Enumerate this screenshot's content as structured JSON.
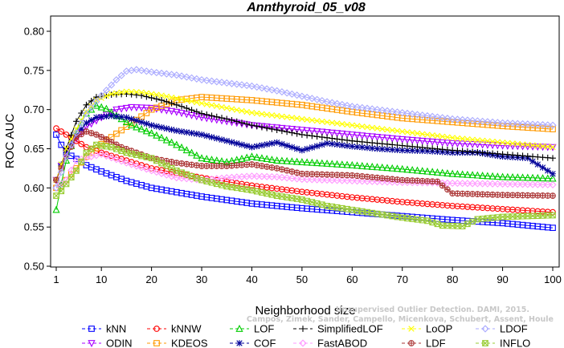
{
  "chart_data": {
    "type": "line",
    "title": "Annthyroid_05_v08",
    "xlabel": "Neighborhood size",
    "ylabel": "ROC AUC",
    "xlim": [
      1,
      100
    ],
    "ylim": [
      0.5,
      0.8
    ],
    "xticks": [
      1,
      10,
      20,
      30,
      40,
      50,
      60,
      70,
      80,
      90,
      100
    ],
    "yticks": [
      0.5,
      0.55,
      0.6,
      0.65,
      0.7,
      0.75,
      0.8
    ],
    "ytick_labels": [
      "0.50",
      "0.55",
      "0.60",
      "0.65",
      "0.70",
      "0.75",
      "0.80"
    ],
    "grid": false,
    "legend_position": "bottom",
    "series": [
      {
        "name": "kNN",
        "color": "#0000ff",
        "marker": "square",
        "anchors": [
          [
            1,
            0.668
          ],
          [
            2,
            0.655
          ],
          [
            3,
            0.645
          ],
          [
            5,
            0.637
          ],
          [
            7,
            0.629
          ],
          [
            10,
            0.621
          ],
          [
            15,
            0.609
          ],
          [
            20,
            0.6
          ],
          [
            30,
            0.589
          ],
          [
            40,
            0.58
          ],
          [
            50,
            0.574
          ],
          [
            60,
            0.569
          ],
          [
            70,
            0.564
          ],
          [
            80,
            0.559
          ],
          [
            90,
            0.555
          ],
          [
            100,
            0.549
          ]
        ]
      },
      {
        "name": "ODIN",
        "color": "#aa00ff",
        "marker": "triangle-down",
        "anchors": [
          [
            1,
            0.61
          ],
          [
            2,
            0.628
          ],
          [
            3,
            0.645
          ],
          [
            5,
            0.663
          ],
          [
            7,
            0.678
          ],
          [
            10,
            0.69
          ],
          [
            13,
            0.7
          ],
          [
            16,
            0.703
          ],
          [
            20,
            0.702
          ],
          [
            25,
            0.697
          ],
          [
            30,
            0.69
          ],
          [
            40,
            0.68
          ],
          [
            50,
            0.674
          ],
          [
            60,
            0.668
          ],
          [
            70,
            0.662
          ],
          [
            80,
            0.657
          ],
          [
            90,
            0.654
          ],
          [
            100,
            0.652
          ]
        ]
      },
      {
        "name": "kNNW",
        "color": "#ff0000",
        "marker": "circle",
        "anchors": [
          [
            1,
            0.676
          ],
          [
            2,
            0.672
          ],
          [
            3,
            0.668
          ],
          [
            5,
            0.66
          ],
          [
            7,
            0.652
          ],
          [
            10,
            0.645
          ],
          [
            15,
            0.635
          ],
          [
            20,
            0.625
          ],
          [
            30,
            0.613
          ],
          [
            40,
            0.603
          ],
          [
            50,
            0.595
          ],
          [
            60,
            0.588
          ],
          [
            70,
            0.582
          ],
          [
            80,
            0.577
          ],
          [
            90,
            0.573
          ],
          [
            100,
            0.569
          ]
        ]
      },
      {
        "name": "KDEOS",
        "color": "#ff9900",
        "marker": "square",
        "anchors": [
          [
            1,
            0.6
          ],
          [
            2,
            0.602
          ],
          [
            3,
            0.61
          ],
          [
            5,
            0.625
          ],
          [
            7,
            0.64
          ],
          [
            10,
            0.656
          ],
          [
            15,
            0.678
          ],
          [
            20,
            0.7
          ],
          [
            25,
            0.712
          ],
          [
            30,
            0.716
          ],
          [
            40,
            0.712
          ],
          [
            50,
            0.706
          ],
          [
            60,
            0.697
          ],
          [
            70,
            0.689
          ],
          [
            80,
            0.684
          ],
          [
            90,
            0.679
          ],
          [
            100,
            0.675
          ]
        ]
      },
      {
        "name": "LOF",
        "color": "#00cc00",
        "marker": "triangle-up",
        "anchors": [
          [
            1,
            0.572
          ],
          [
            2,
            0.605
          ],
          [
            3,
            0.635
          ],
          [
            5,
            0.672
          ],
          [
            7,
            0.695
          ],
          [
            9,
            0.705
          ],
          [
            11,
            0.701
          ],
          [
            13,
            0.692
          ],
          [
            16,
            0.68
          ],
          [
            20,
            0.67
          ],
          [
            25,
            0.655
          ],
          [
            30,
            0.638
          ],
          [
            35,
            0.633
          ],
          [
            40,
            0.64
          ],
          [
            45,
            0.635
          ],
          [
            50,
            0.633
          ],
          [
            60,
            0.629
          ],
          [
            70,
            0.624
          ],
          [
            80,
            0.618
          ],
          [
            90,
            0.614
          ],
          [
            100,
            0.612
          ]
        ]
      },
      {
        "name": "COF",
        "color": "#000099",
        "marker": "asterisk",
        "anchors": [
          [
            1,
            0.61
          ],
          [
            2,
            0.63
          ],
          [
            3,
            0.648
          ],
          [
            5,
            0.667
          ],
          [
            7,
            0.683
          ],
          [
            9,
            0.69
          ],
          [
            12,
            0.692
          ],
          [
            15,
            0.69
          ],
          [
            20,
            0.68
          ],
          [
            25,
            0.673
          ],
          [
            30,
            0.668
          ],
          [
            35,
            0.66
          ],
          [
            40,
            0.652
          ],
          [
            45,
            0.658
          ],
          [
            50,
            0.648
          ],
          [
            55,
            0.657
          ],
          [
            60,
            0.653
          ],
          [
            65,
            0.65
          ],
          [
            70,
            0.648
          ],
          [
            75,
            0.647
          ],
          [
            80,
            0.645
          ],
          [
            85,
            0.645
          ],
          [
            90,
            0.64
          ],
          [
            95,
            0.638
          ],
          [
            100,
            0.618
          ]
        ]
      },
      {
        "name": "SimplifiedLOF",
        "color": "#000000",
        "marker": "plus",
        "anchors": [
          [
            1,
            0.61
          ],
          [
            2,
            0.628
          ],
          [
            3,
            0.65
          ],
          [
            5,
            0.685
          ],
          [
            7,
            0.706
          ],
          [
            9,
            0.716
          ],
          [
            12,
            0.719
          ],
          [
            15,
            0.72
          ],
          [
            18,
            0.718
          ],
          [
            22,
            0.712
          ],
          [
            26,
            0.704
          ],
          [
            30,
            0.695
          ],
          [
            35,
            0.688
          ],
          [
            40,
            0.68
          ],
          [
            45,
            0.674
          ],
          [
            50,
            0.668
          ],
          [
            60,
            0.66
          ],
          [
            70,
            0.654
          ],
          [
            80,
            0.648
          ],
          [
            90,
            0.643
          ],
          [
            100,
            0.638
          ]
        ]
      },
      {
        "name": "FastABOD",
        "color": "#ff99ff",
        "marker": "diamond",
        "anchors": [
          [
            1,
            0.6
          ],
          [
            2,
            0.605
          ],
          [
            3,
            0.61
          ],
          [
            5,
            0.635
          ],
          [
            8,
            0.64
          ],
          [
            10,
            0.643
          ],
          [
            15,
            0.632
          ],
          [
            20,
            0.622
          ],
          [
            25,
            0.613
          ],
          [
            30,
            0.61
          ],
          [
            35,
            0.613
          ],
          [
            40,
            0.615
          ],
          [
            45,
            0.614
          ],
          [
            50,
            0.611
          ],
          [
            60,
            0.609
          ],
          [
            70,
            0.607
          ],
          [
            80,
            0.606
          ],
          [
            90,
            0.605
          ],
          [
            100,
            0.604
          ]
        ]
      },
      {
        "name": "LoOP",
        "color": "#ffff00",
        "marker": "x",
        "anchors": [
          [
            1,
            0.61
          ],
          [
            2,
            0.63
          ],
          [
            3,
            0.65
          ],
          [
            5,
            0.675
          ],
          [
            7,
            0.697
          ],
          [
            9,
            0.712
          ],
          [
            12,
            0.72
          ],
          [
            15,
            0.723
          ],
          [
            18,
            0.722
          ],
          [
            22,
            0.718
          ],
          [
            26,
            0.713
          ],
          [
            30,
            0.708
          ],
          [
            35,
            0.702
          ],
          [
            40,
            0.696
          ],
          [
            50,
            0.688
          ],
          [
            60,
            0.68
          ],
          [
            70,
            0.672
          ],
          [
            80,
            0.664
          ],
          [
            90,
            0.658
          ],
          [
            100,
            0.652
          ]
        ]
      },
      {
        "name": "LDF",
        "color": "#aa3333",
        "marker": "circle-plus",
        "anchors": [
          [
            1,
            0.61
          ],
          [
            2,
            0.625
          ],
          [
            3,
            0.64
          ],
          [
            5,
            0.665
          ],
          [
            7,
            0.672
          ],
          [
            9,
            0.668
          ],
          [
            11,
            0.662
          ],
          [
            14,
            0.652
          ],
          [
            17,
            0.645
          ],
          [
            20,
            0.638
          ],
          [
            25,
            0.632
          ],
          [
            30,
            0.628
          ],
          [
            35,
            0.628
          ],
          [
            40,
            0.63
          ],
          [
            45,
            0.625
          ],
          [
            50,
            0.618
          ],
          [
            55,
            0.617
          ],
          [
            60,
            0.616
          ],
          [
            70,
            0.61
          ],
          [
            77,
            0.608
          ],
          [
            80,
            0.593
          ],
          [
            90,
            0.591
          ],
          [
            100,
            0.59
          ]
        ]
      },
      {
        "name": "LDOF",
        "color": "#aaaaff",
        "marker": "diamond",
        "anchors": [
          [
            1,
            0.6
          ],
          [
            2,
            0.62
          ],
          [
            3,
            0.64
          ],
          [
            5,
            0.67
          ],
          [
            7,
            0.695
          ],
          [
            10,
            0.718
          ],
          [
            13,
            0.738
          ],
          [
            15,
            0.749
          ],
          [
            17,
            0.751
          ],
          [
            20,
            0.748
          ],
          [
            25,
            0.744
          ],
          [
            30,
            0.738
          ],
          [
            35,
            0.734
          ],
          [
            40,
            0.73
          ],
          [
            45,
            0.724
          ],
          [
            50,
            0.717
          ],
          [
            55,
            0.71
          ],
          [
            60,
            0.704
          ],
          [
            70,
            0.696
          ],
          [
            80,
            0.688
          ],
          [
            90,
            0.683
          ],
          [
            100,
            0.68
          ]
        ]
      },
      {
        "name": "INFLO",
        "color": "#99cc33",
        "marker": "x-box",
        "anchors": [
          [
            1,
            0.59
          ],
          [
            2,
            0.596
          ],
          [
            3,
            0.605
          ],
          [
            5,
            0.622
          ],
          [
            7,
            0.645
          ],
          [
            9,
            0.655
          ],
          [
            12,
            0.652
          ],
          [
            15,
            0.645
          ],
          [
            20,
            0.638
          ],
          [
            25,
            0.622
          ],
          [
            30,
            0.61
          ],
          [
            35,
            0.602
          ],
          [
            40,
            0.597
          ],
          [
            45,
            0.59
          ],
          [
            50,
            0.585
          ],
          [
            55,
            0.577
          ],
          [
            60,
            0.572
          ],
          [
            65,
            0.567
          ],
          [
            70,
            0.562
          ],
          [
            75,
            0.558
          ],
          [
            78,
            0.552
          ],
          [
            82,
            0.551
          ],
          [
            85,
            0.56
          ],
          [
            90,
            0.563
          ],
          [
            95,
            0.564
          ],
          [
            100,
            0.565
          ]
        ]
      }
    ]
  },
  "watermark": {
    "line1": "Unsupervised Outlier Detection. DAMI, 2015.",
    "line2": "Campos, Zimek, Sander, Campello, Micenkova, Schubert, Assent, Houle"
  }
}
